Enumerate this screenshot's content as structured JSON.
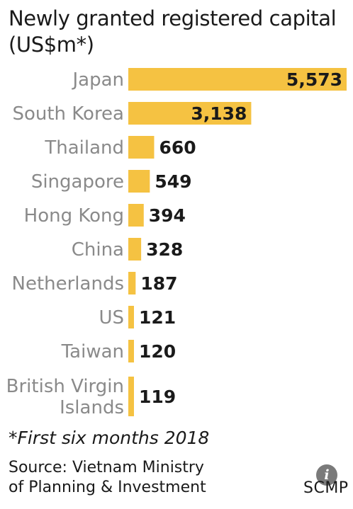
{
  "chart_data": {
    "type": "bar",
    "orientation": "horizontal",
    "title": "Newly granted registered capital (US$m*)",
    "categories": [
      "Japan",
      "South Korea",
      "Thailand",
      "Singapore",
      "Hong Kong",
      "China",
      "Netherlands",
      "US",
      "Taiwan",
      "British Virgin Islands"
    ],
    "category_lines": [
      [
        "Japan"
      ],
      [
        "South Korea"
      ],
      [
        "Thailand"
      ],
      [
        "Singapore"
      ],
      [
        "Hong Kong"
      ],
      [
        "China"
      ],
      [
        "Netherlands"
      ],
      [
        "US"
      ],
      [
        "Taiwan"
      ],
      [
        "British Virgin",
        "Islands"
      ]
    ],
    "values": [
      5573,
      3138,
      660,
      549,
      394,
      328,
      187,
      121,
      120,
      119
    ],
    "value_labels": [
      "5,573",
      "3,138",
      "660",
      "549",
      "394",
      "328",
      "187",
      "121",
      "120",
      "119"
    ],
    "bar_color": "#f5c242",
    "grid": false,
    "legend": "none"
  },
  "footnote": "*First six months 2018",
  "source": "Source: Vietnam Ministry of Planning & Investment",
  "brand": "SCMP",
  "info_icon": {
    "icon": "info-icon",
    "glyph": "i"
  }
}
